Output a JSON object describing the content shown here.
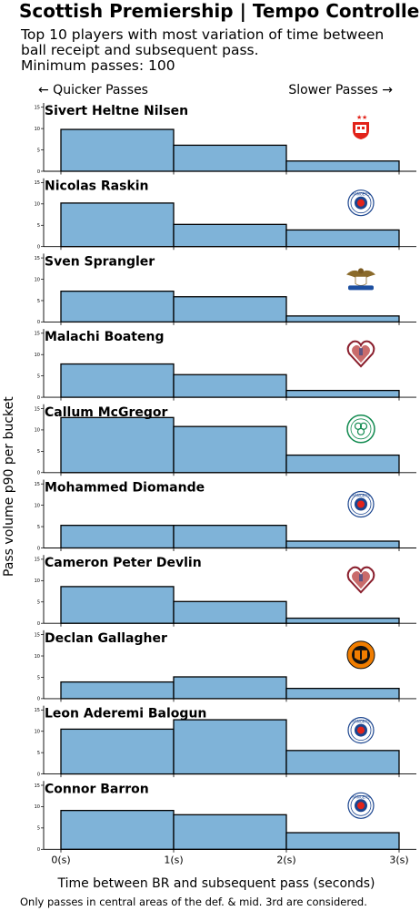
{
  "title": "Scottish Premiership | Tempo Controllers",
  "subtitle": "Top 10 players with most variation of time between\nball receipt and subsequent pass.\nMinimum passes: 100",
  "direction_left": "← Quicker Passes",
  "direction_right": "Slower Passes →",
  "ylabel": "Pass volume p90 per bucket",
  "xlabel": "Time between BR and subsequent pass (seconds)",
  "footnote": "Only passes in central areas of the def. & mid. 3rd are considered.",
  "colors": {
    "bar": "#7fb3d8",
    "edge": "#000000"
  },
  "chart_data": {
    "type": "bar",
    "x_edges": [
      0,
      1,
      2,
      3
    ],
    "x_tick_labels": [
      "0(s)",
      "1(s)",
      "2(s)",
      "3(s)"
    ],
    "y_ticks": [
      0,
      5,
      10,
      15
    ],
    "ylim": [
      0,
      16
    ],
    "grid": false,
    "panels": [
      {
        "player": "Sivert Heltne Nilsen",
        "badge": "aberdeen-badge-icon",
        "values": [
          9.8,
          6.1,
          2.4
        ]
      },
      {
        "player": "Nicolas Raskin",
        "badge": "rangers-badge-icon",
        "values": [
          10.2,
          5.2,
          3.9
        ]
      },
      {
        "player": "Sven Sprangler",
        "badge": "st-johnstone-badge-icon",
        "values": [
          7.2,
          5.9,
          1.4
        ]
      },
      {
        "player": "Malachi Boateng",
        "badge": "hearts-badge-icon",
        "values": [
          7.8,
          5.3,
          1.6
        ]
      },
      {
        "player": "Callum McGregor",
        "badge": "celtic-badge-icon",
        "values": [
          12.9,
          10.8,
          4.1
        ]
      },
      {
        "player": "Mohammed Diomande",
        "badge": "rangers-badge-icon",
        "values": [
          5.3,
          5.3,
          1.6
        ]
      },
      {
        "player": "Cameron Peter Devlin",
        "badge": "hearts-badge-icon",
        "values": [
          8.6,
          5.1,
          1.2
        ]
      },
      {
        "player": "Declan Gallagher",
        "badge": "dundee-united-badge-icon",
        "values": [
          3.9,
          5.1,
          2.4
        ]
      },
      {
        "player": "Leon Aderemi Balogun",
        "badge": "rangers-badge-icon",
        "values": [
          10.5,
          12.7,
          5.5
        ]
      },
      {
        "player": "Connor Barron",
        "badge": "rangers-badge-icon",
        "values": [
          9.1,
          8.1,
          3.9
        ]
      }
    ]
  }
}
